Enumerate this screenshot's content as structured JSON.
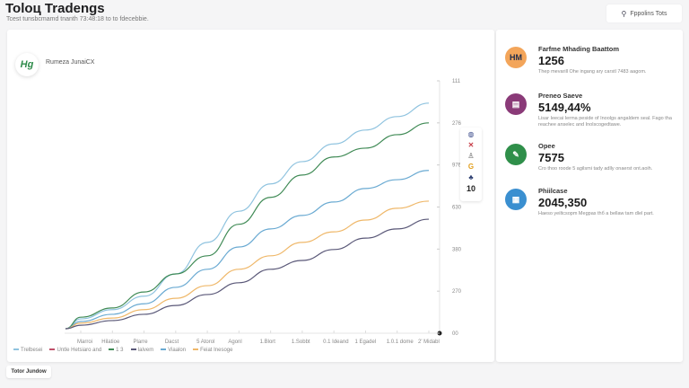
{
  "header": {
    "title": "Toloц Tradengs",
    "subtitle": "Tcest tunsbcmamd tnanth 73:48:18 to to fdecebbie."
  },
  "top_button": {
    "label": "Fppolins Tots",
    "icon": "pin-icon"
  },
  "main": {
    "brand_label": "Rumeza JunaiCX",
    "brand_mark": "Hg"
  },
  "icon_stack": {
    "icons": [
      "globe-icon",
      "close-icon",
      "stamp-icon",
      "g-icon",
      "club-icon"
    ],
    "count": "10",
    "colors": [
      "#3a4a8a",
      "#c8404a",
      "#555",
      "#e2a020",
      "#2c3e70"
    ]
  },
  "chart_data": {
    "type": "line",
    "categories": [
      "Marroi",
      "Hilatioe",
      "Plarre",
      "Dacst",
      "5 Atorol",
      "Agonl",
      "1.Blort",
      "1.Sobbt",
      "0.1 Ideand",
      "1 Egadel",
      "1.0.1 dome",
      "2' Midabl"
    ],
    "ylim": [
      0,
      6
    ],
    "yticks": [
      0,
      1,
      2,
      3,
      4,
      5,
      6
    ],
    "ytick_labels": [
      "00",
      "270",
      "380",
      "630",
      "976",
      "276",
      "111"
    ],
    "grid": false,
    "legend_placement": "bottom-left",
    "series": [
      {
        "name": "Trelbesei",
        "color": "#8fc3df",
        "values": [
          0.34,
          0.56,
          0.88,
          1.41,
          2.16,
          2.9,
          3.55,
          4.08,
          4.5,
          4.83,
          5.15,
          5.47
        ]
      },
      {
        "name": "1 3",
        "color": "#3f8a55",
        "values": [
          0.38,
          0.6,
          0.98,
          1.41,
          1.84,
          2.59,
          3.23,
          3.76,
          4.19,
          4.4,
          4.72,
          5.0
        ]
      },
      {
        "name": "Viaalon",
        "color": "#6aaad2",
        "values": [
          0.28,
          0.45,
          0.7,
          1.09,
          1.52,
          2.05,
          2.48,
          2.8,
          3.12,
          3.44,
          3.65,
          3.87
        ]
      },
      {
        "name": "Feiat Inesoge",
        "color": "#efb86a",
        "values": [
          0.24,
          0.36,
          0.56,
          0.83,
          1.13,
          1.52,
          1.84,
          2.16,
          2.41,
          2.69,
          2.97,
          3.14
        ]
      },
      {
        "name": "Ialvem",
        "color": "#5a5878",
        "values": [
          0.19,
          0.3,
          0.45,
          0.66,
          0.92,
          1.2,
          1.52,
          1.73,
          1.99,
          2.26,
          2.48,
          2.71
        ]
      }
    ],
    "legend": [
      {
        "label": "Trelbesei",
        "color": "#8fc3df"
      },
      {
        "label": "Untle Hetsiaro and",
        "color": "#c0506a"
      },
      {
        "label": "1 3",
        "color": "#3f8a55"
      },
      {
        "label": "Ialvem",
        "color": "#5a5878"
      },
      {
        "label": "Viaalon",
        "color": "#6aaad2"
      },
      {
        "label": "Feiat Inesoge",
        "color": "#efb86a"
      }
    ]
  },
  "stats": [
    {
      "label": "Farfme Mhading Baattom",
      "value": "1256",
      "desc": "Thep mevarill Ohe ingang ary carstl 7483 aagom.",
      "icon": "badge-icon",
      "color": "#f3a55a",
      "mark": "HM"
    },
    {
      "label": "Preneo Saeve",
      "value": "5149,44%",
      "desc": "Lisar Ieecai Ierma peside of Inoolgs angaldem seal. Fago tha reachee anselec and Inolscogedtawe.",
      "icon": "presentation-icon",
      "color": "#8a3a78",
      "mark": "▤"
    },
    {
      "label": "Opee",
      "value": "7575",
      "desc": "Cro thoo roode 5 agilsmi tady adlly onaerst ont.aoih.",
      "icon": "plant-icon",
      "color": "#2f8f4a",
      "mark": "✎"
    },
    {
      "label": "Phiilcase",
      "value": "2045,350",
      "desc": "Haeso yeiltcsopm Megpas thб a bellaw tam dlel part.",
      "icon": "card-icon",
      "color": "#3a8fd0",
      "mark": "▦"
    }
  ],
  "bottom_button": {
    "label": "Totor Jundow"
  }
}
